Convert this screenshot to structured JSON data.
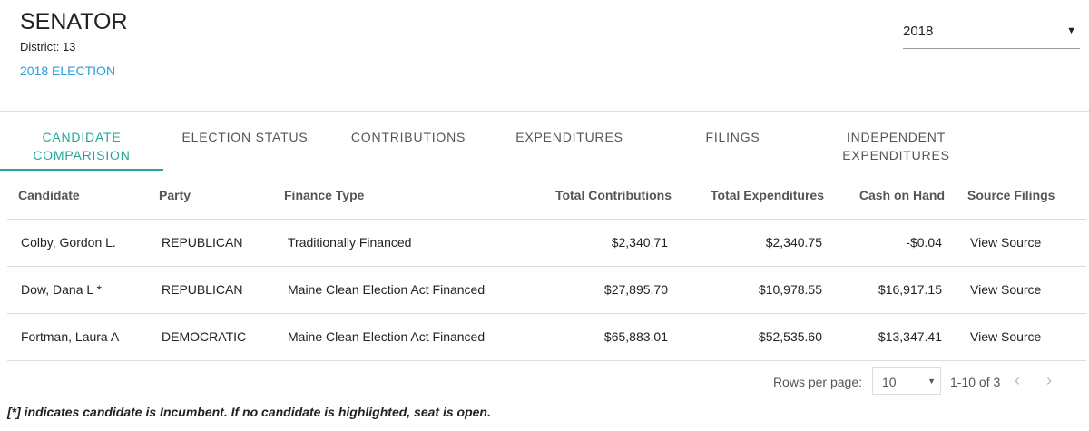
{
  "header": {
    "title": "SENATOR",
    "district": "District: 13",
    "election": "2018 ELECTION",
    "year": "2018"
  },
  "tabs": [
    "CANDIDATE COMPARISION",
    "ELECTION STATUS",
    "CONTRIBUTIONS",
    "EXPENDITURES",
    "FILINGS",
    "INDEPENDENT EXPENDITURES"
  ],
  "table": {
    "columns": [
      "Candidate",
      "Party",
      "Finance Type",
      "Total Contributions",
      "Total Expenditures",
      "Cash on Hand",
      "Source Filings"
    ],
    "rows": [
      [
        "Colby, Gordon L.",
        "REPUBLICAN",
        "Traditionally Financed",
        "$2,340.71",
        "$2,340.75",
        "-$0.04",
        "View Source"
      ],
      [
        "Dow, Dana L *",
        "REPUBLICAN",
        "Maine Clean Election Act Financed",
        "$27,895.70",
        "$10,978.55",
        "$16,917.15",
        "View Source"
      ],
      [
        "Fortman, Laura A",
        "DEMOCRATIC",
        "Maine Clean Election Act Financed",
        "$65,883.01",
        "$52,535.60",
        "$13,347.41",
        "View Source"
      ]
    ]
  },
  "pagination": {
    "rows_per_page_label": "Rows per page:",
    "rows_per_page": "10",
    "range": "1-10 of 3"
  },
  "note": "[*] indicates candidate is Incumbent. If no candidate is highlighted, seat is open."
}
